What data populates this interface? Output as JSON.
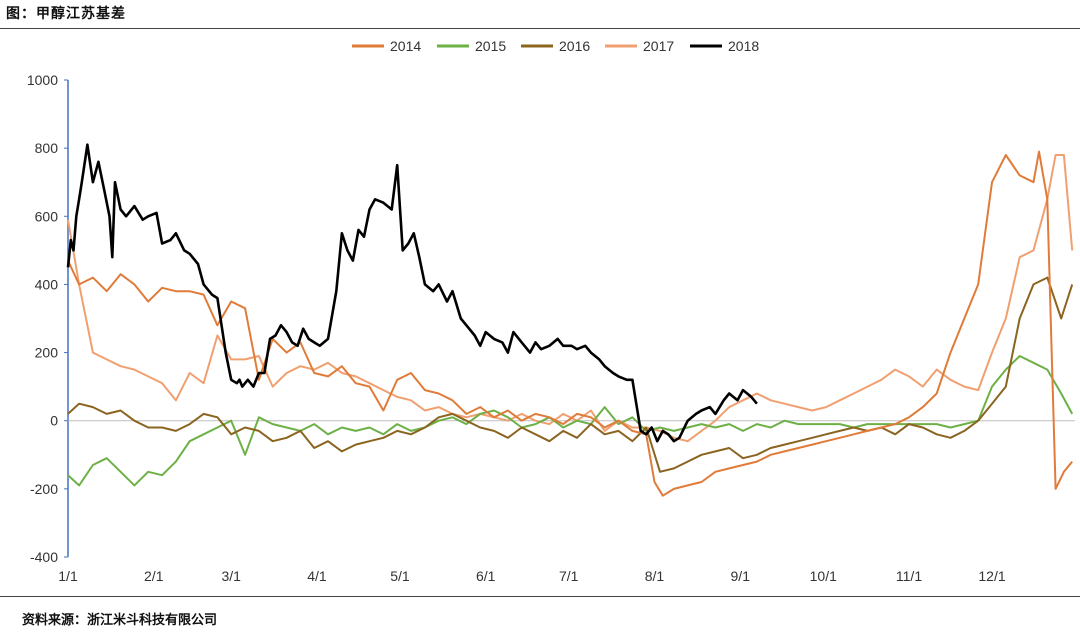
{
  "header": {
    "title": "图：甲醇江苏基差"
  },
  "footer": {
    "source": "资料来源：浙江米斗科技有限公司"
  },
  "chart_data": {
    "type": "line",
    "title": "图：甲醇江苏基差",
    "xlabel": "",
    "ylabel": "",
    "ylim": [
      -400,
      1000
    ],
    "yticks": [
      "1000",
      "800",
      "600",
      "400",
      "200",
      "0",
      "-200",
      "-400"
    ],
    "xticks": [
      "1/1",
      "2/1",
      "3/1",
      "4/1",
      "5/1",
      "6/1",
      "7/1",
      "8/1",
      "9/1",
      "10/1",
      "11/1",
      "12/1"
    ],
    "grid": false,
    "legend_position": "top",
    "x_unit": "day-of-year",
    "series": [
      {
        "name": "2014",
        "color": "#e07b39",
        "x": [
          1,
          5,
          10,
          15,
          20,
          25,
          30,
          35,
          40,
          45,
          50,
          55,
          60,
          65,
          70,
          75,
          80,
          85,
          90,
          95,
          100,
          105,
          110,
          115,
          120,
          125,
          130,
          135,
          140,
          145,
          150,
          155,
          160,
          165,
          170,
          175,
          180,
          185,
          190,
          195,
          200,
          205,
          210,
          213,
          216,
          220,
          225,
          230,
          235,
          240,
          245,
          250,
          255,
          260,
          265,
          270,
          275,
          280,
          285,
          290,
          295,
          300,
          305,
          310,
          315,
          320,
          325,
          330,
          335,
          340,
          345,
          350,
          352,
          355,
          358,
          361,
          364
        ],
        "values": [
          470,
          400,
          420,
          380,
          430,
          400,
          350,
          390,
          380,
          380,
          370,
          280,
          350,
          330,
          120,
          240,
          200,
          230,
          140,
          130,
          160,
          110,
          100,
          30,
          120,
          140,
          90,
          80,
          60,
          20,
          40,
          10,
          30,
          0,
          20,
          10,
          -10,
          20,
          10,
          -20,
          0,
          -30,
          -40,
          -180,
          -220,
          -200,
          -190,
          -180,
          -150,
          -140,
          -130,
          -120,
          -100,
          -90,
          -80,
          -70,
          -60,
          -50,
          -40,
          -30,
          -20,
          -10,
          10,
          40,
          80,
          200,
          300,
          400,
          700,
          780,
          720,
          700,
          790,
          650,
          -200,
          -150,
          -120
        ]
      },
      {
        "name": "2015",
        "color": "#6db046",
        "x": [
          1,
          5,
          10,
          15,
          20,
          25,
          30,
          35,
          40,
          45,
          50,
          55,
          60,
          65,
          70,
          75,
          80,
          85,
          90,
          95,
          100,
          105,
          110,
          115,
          120,
          125,
          130,
          135,
          140,
          145,
          150,
          155,
          160,
          165,
          170,
          175,
          180,
          185,
          190,
          195,
          200,
          205,
          210,
          215,
          220,
          225,
          230,
          235,
          240,
          245,
          250,
          255,
          260,
          265,
          270,
          275,
          280,
          285,
          290,
          295,
          300,
          305,
          310,
          315,
          320,
          325,
          330,
          335,
          340,
          345,
          350,
          355,
          360,
          364
        ],
        "values": [
          -160,
          -190,
          -130,
          -110,
          -150,
          -190,
          -150,
          -160,
          -120,
          -60,
          -40,
          -20,
          0,
          -100,
          10,
          -10,
          -20,
          -30,
          -10,
          -40,
          -20,
          -30,
          -20,
          -40,
          -10,
          -30,
          -20,
          0,
          10,
          -10,
          20,
          30,
          10,
          -20,
          -10,
          10,
          -20,
          0,
          -10,
          40,
          -10,
          10,
          -30,
          -20,
          -30,
          -20,
          -10,
          -20,
          -10,
          -30,
          -10,
          -20,
          0,
          -10,
          -10,
          -10,
          -10,
          -20,
          -10,
          -10,
          -10,
          -10,
          -10,
          -10,
          -20,
          -10,
          0,
          100,
          150,
          190,
          170,
          150,
          80,
          20
        ]
      },
      {
        "name": "2016",
        "color": "#8b6420",
        "x": [
          1,
          5,
          10,
          15,
          20,
          25,
          30,
          35,
          40,
          45,
          50,
          55,
          60,
          65,
          70,
          75,
          80,
          85,
          90,
          95,
          100,
          105,
          110,
          115,
          120,
          125,
          130,
          135,
          140,
          145,
          150,
          155,
          160,
          165,
          170,
          175,
          180,
          185,
          190,
          195,
          200,
          205,
          210,
          215,
          220,
          225,
          230,
          235,
          240,
          245,
          250,
          255,
          260,
          265,
          270,
          275,
          280,
          285,
          290,
          295,
          300,
          305,
          310,
          315,
          320,
          325,
          330,
          335,
          340,
          345,
          350,
          355,
          360,
          364
        ],
        "values": [
          20,
          50,
          40,
          20,
          30,
          0,
          -20,
          -20,
          -30,
          -10,
          20,
          10,
          -40,
          -20,
          -30,
          -60,
          -50,
          -30,
          -80,
          -60,
          -90,
          -70,
          -60,
          -50,
          -30,
          -40,
          -20,
          10,
          20,
          0,
          -20,
          -30,
          -50,
          -20,
          -40,
          -60,
          -30,
          -50,
          -10,
          -40,
          -30,
          -60,
          -20,
          -150,
          -140,
          -120,
          -100,
          -90,
          -80,
          -110,
          -100,
          -80,
          -70,
          -60,
          -50,
          -40,
          -30,
          -20,
          -30,
          -20,
          -40,
          -10,
          -20,
          -40,
          -50,
          -30,
          0,
          50,
          100,
          300,
          400,
          420,
          300,
          400
        ]
      },
      {
        "name": "2017",
        "color": "#f0a070",
        "x": [
          1,
          5,
          10,
          15,
          20,
          25,
          30,
          35,
          40,
          45,
          50,
          55,
          60,
          65,
          70,
          75,
          80,
          85,
          90,
          95,
          100,
          105,
          110,
          115,
          120,
          125,
          130,
          135,
          140,
          145,
          150,
          155,
          160,
          165,
          170,
          175,
          180,
          185,
          190,
          195,
          200,
          205,
          210,
          215,
          220,
          225,
          230,
          235,
          240,
          245,
          250,
          255,
          260,
          265,
          270,
          275,
          280,
          285,
          290,
          295,
          300,
          305,
          310,
          315,
          320,
          325,
          330,
          335,
          340,
          345,
          350,
          355,
          358,
          361,
          364
        ],
        "values": [
          590,
          400,
          200,
          180,
          160,
          150,
          130,
          110,
          60,
          140,
          110,
          250,
          180,
          180,
          190,
          100,
          140,
          160,
          150,
          170,
          140,
          130,
          110,
          90,
          70,
          60,
          30,
          40,
          20,
          10,
          20,
          10,
          0,
          20,
          0,
          -10,
          20,
          0,
          30,
          -30,
          0,
          -20,
          -20,
          -30,
          -50,
          -60,
          -30,
          0,
          40,
          60,
          80,
          60,
          50,
          40,
          30,
          40,
          60,
          80,
          100,
          120,
          150,
          130,
          100,
          150,
          120,
          100,
          90,
          200,
          300,
          480,
          500,
          650,
          780,
          780,
          500
        ]
      },
      {
        "name": "2018",
        "color": "#000000",
        "x": [
          1,
          2,
          3,
          4,
          5,
          6,
          8,
          10,
          12,
          14,
          16,
          17,
          18,
          20,
          22,
          25,
          28,
          30,
          33,
          35,
          38,
          40,
          43,
          45,
          48,
          50,
          53,
          55,
          58,
          60,
          62,
          63,
          64,
          66,
          68,
          70,
          72,
          74,
          76,
          78,
          80,
          82,
          84,
          86,
          88,
          90,
          92,
          95,
          98,
          100,
          102,
          104,
          106,
          108,
          110,
          112,
          115,
          118,
          120,
          122,
          124,
          126,
          128,
          130,
          133,
          135,
          138,
          140,
          143,
          145,
          148,
          150,
          152,
          155,
          158,
          160,
          162,
          165,
          168,
          170,
          172,
          175,
          178,
          180,
          183,
          185,
          188,
          190,
          193,
          195,
          198,
          200,
          203,
          205,
          208,
          210,
          212,
          214,
          216,
          218,
          220,
          222,
          225,
          228,
          230,
          233,
          235,
          238,
          240,
          243,
          245,
          248,
          250
        ],
        "values": [
          450,
          530,
          500,
          600,
          650,
          700,
          810,
          700,
          760,
          680,
          600,
          480,
          700,
          620,
          600,
          630,
          590,
          600,
          610,
          520,
          530,
          550,
          500,
          490,
          460,
          400,
          370,
          360,
          200,
          120,
          110,
          120,
          100,
          120,
          100,
          140,
          140,
          240,
          250,
          280,
          260,
          230,
          220,
          270,
          240,
          230,
          220,
          240,
          380,
          550,
          500,
          470,
          560,
          540,
          620,
          650,
          640,
          620,
          750,
          500,
          520,
          550,
          480,
          400,
          380,
          400,
          350,
          380,
          300,
          280,
          250,
          220,
          260,
          240,
          230,
          200,
          260,
          230,
          200,
          230,
          210,
          220,
          240,
          220,
          220,
          210,
          220,
          200,
          180,
          160,
          140,
          130,
          120,
          120,
          -30,
          -40,
          -20,
          -60,
          -30,
          -40,
          -60,
          -50,
          0,
          20,
          30,
          40,
          20,
          60,
          80,
          60,
          90,
          70,
          50
        ]
      }
    ]
  }
}
